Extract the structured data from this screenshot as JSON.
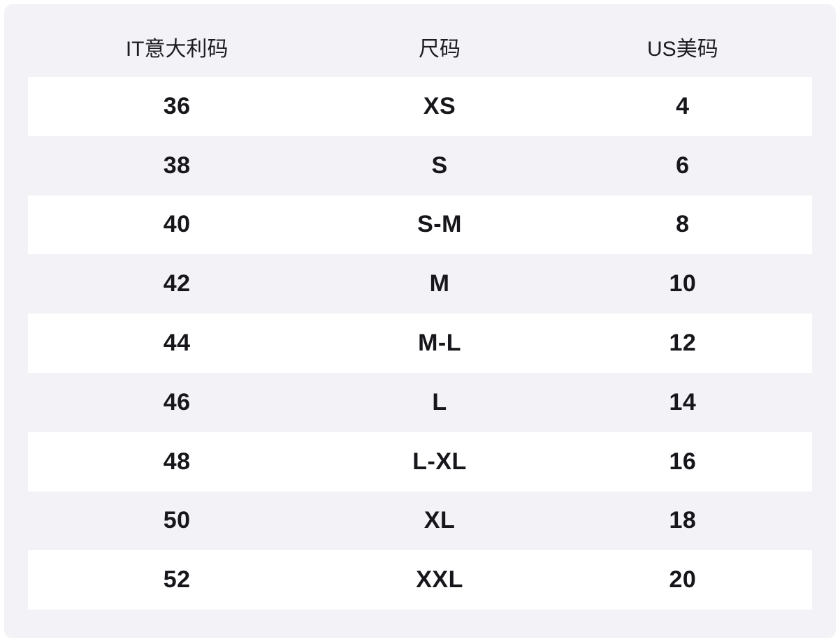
{
  "colors": {
    "page_background": "#ffffff",
    "panel_background": "#f2f2f7",
    "row_stripe": "#ffffff",
    "header_text": "#1c1c21",
    "value_text": "#16161b"
  },
  "size_chart": {
    "columns": [
      {
        "key": "it",
        "label": "IT意大利码"
      },
      {
        "key": "size",
        "label": "尺码"
      },
      {
        "key": "us",
        "label": "US美码"
      }
    ],
    "rows": [
      {
        "it": "36",
        "size": "XS",
        "us": "4"
      },
      {
        "it": "38",
        "size": "S",
        "us": "6"
      },
      {
        "it": "40",
        "size": "S-M",
        "us": "8"
      },
      {
        "it": "42",
        "size": "M",
        "us": "10"
      },
      {
        "it": "44",
        "size": "M-L",
        "us": "12"
      },
      {
        "it": "46",
        "size": "L",
        "us": "14"
      },
      {
        "it": "48",
        "size": "L-XL",
        "us": "16"
      },
      {
        "it": "50",
        "size": "XL",
        "us": "18"
      },
      {
        "it": "52",
        "size": "XXL",
        "us": "20"
      }
    ]
  }
}
